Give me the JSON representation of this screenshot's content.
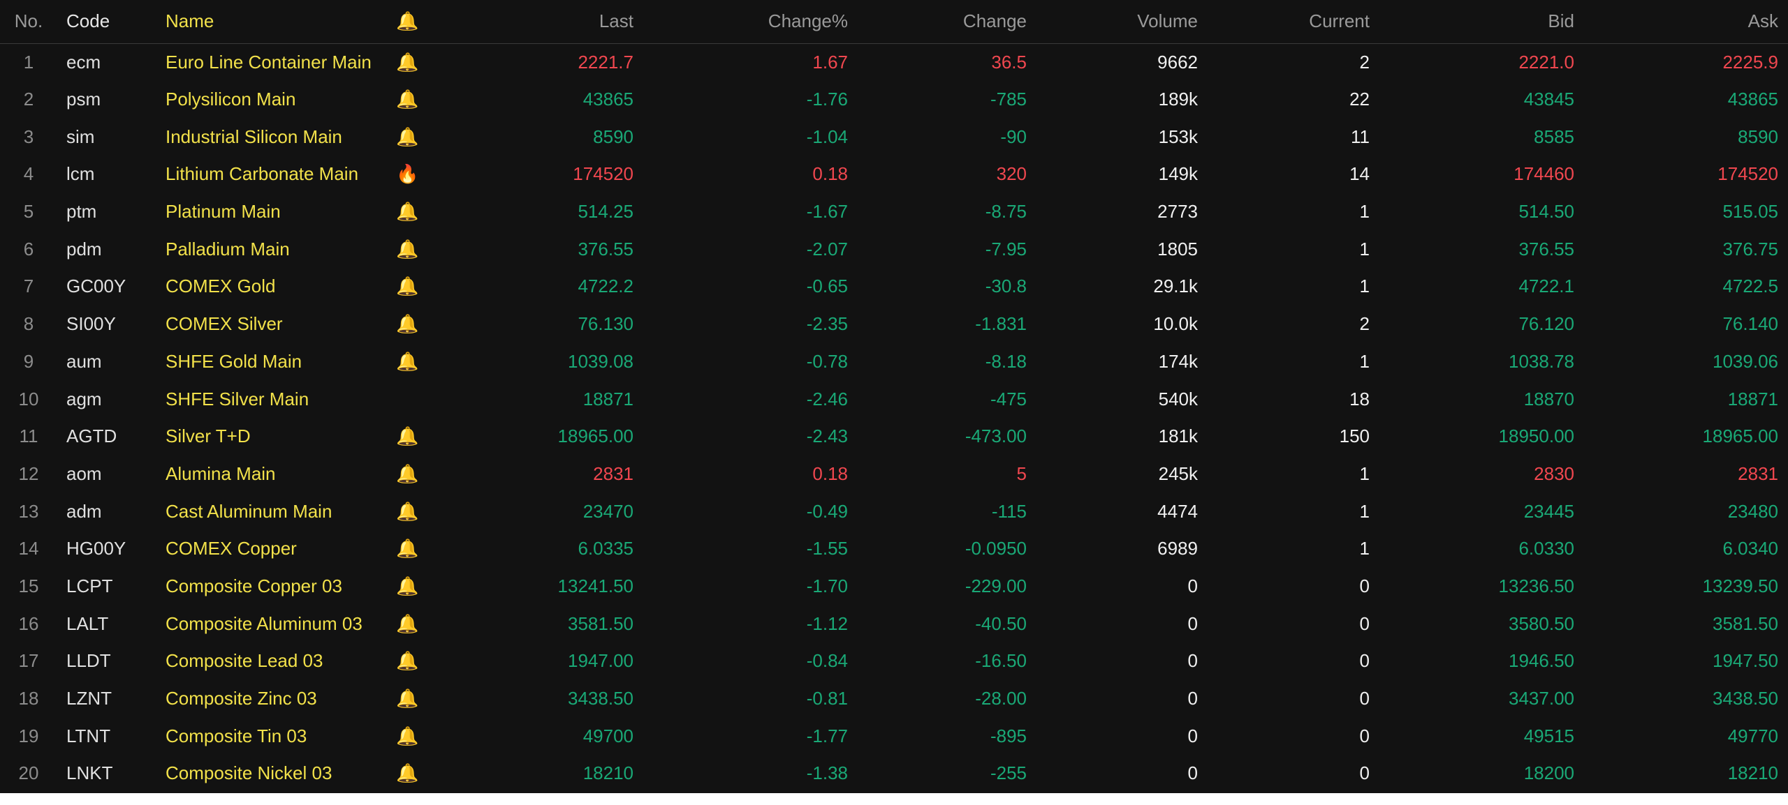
{
  "colors": {
    "background": "#121212",
    "header_text": "#9a9a9a",
    "name_yellow": "#f2e14a",
    "up_red": "#f0474f",
    "down_green": "#1aa876",
    "neutral": "#f0f0f0"
  },
  "header": {
    "no": "No.",
    "code": "Code",
    "name": "Name",
    "alert": "🔔",
    "last": "Last",
    "change_pct": "Change%",
    "change": "Change",
    "volume": "Volume",
    "current": "Current",
    "bid": "Bid",
    "ask": "Ask"
  },
  "rows": [
    {
      "no": "1",
      "code": "ecm",
      "name": "Euro Line Container Main",
      "icon": "🔔",
      "icon_name": "bell-icon",
      "last": "2221.7",
      "change_pct": "1.67",
      "change": "36.5",
      "volume": "9662",
      "current": "2",
      "bid": "2221.0",
      "ask": "2225.9",
      "trend": "up"
    },
    {
      "no": "2",
      "code": "psm",
      "name": "Polysilicon Main",
      "icon": "🔔",
      "icon_name": "bell-icon",
      "last": "43865",
      "change_pct": "-1.76",
      "change": "-785",
      "volume": "189k",
      "current": "22",
      "bid": "43845",
      "ask": "43865",
      "trend": "down"
    },
    {
      "no": "3",
      "code": "sim",
      "name": "Industrial Silicon Main",
      "icon": "🔔",
      "icon_name": "bell-icon",
      "last": "8590",
      "change_pct": "-1.04",
      "change": "-90",
      "volume": "153k",
      "current": "11",
      "bid": "8585",
      "ask": "8590",
      "trend": "down"
    },
    {
      "no": "4",
      "code": "lcm",
      "name": "Lithium Carbonate Main",
      "icon": "🔥",
      "icon_name": "fire-icon",
      "last": "174520",
      "change_pct": "0.18",
      "change": "320",
      "volume": "149k",
      "current": "14",
      "bid": "174460",
      "ask": "174520",
      "trend": "up"
    },
    {
      "no": "5",
      "code": "ptm",
      "name": "Platinum Main",
      "icon": "🔔",
      "icon_name": "bell-icon",
      "last": "514.25",
      "change_pct": "-1.67",
      "change": "-8.75",
      "volume": "2773",
      "current": "1",
      "bid": "514.50",
      "ask": "515.05",
      "trend": "down"
    },
    {
      "no": "6",
      "code": "pdm",
      "name": "Palladium Main",
      "icon": "🔔",
      "icon_name": "bell-icon",
      "last": "376.55",
      "change_pct": "-2.07",
      "change": "-7.95",
      "volume": "1805",
      "current": "1",
      "bid": "376.55",
      "ask": "376.75",
      "trend": "down"
    },
    {
      "no": "7",
      "code": "GC00Y",
      "name": "COMEX Gold",
      "icon": "🔔",
      "icon_name": "bell-icon",
      "last": "4722.2",
      "change_pct": "-0.65",
      "change": "-30.8",
      "volume": "29.1k",
      "current": "1",
      "bid": "4722.1",
      "ask": "4722.5",
      "trend": "down"
    },
    {
      "no": "8",
      "code": "SI00Y",
      "name": "COMEX Silver",
      "icon": "🔔",
      "icon_name": "bell-icon",
      "last": "76.130",
      "change_pct": "-2.35",
      "change": "-1.831",
      "volume": "10.0k",
      "current": "2",
      "bid": "76.120",
      "ask": "76.140",
      "trend": "down"
    },
    {
      "no": "9",
      "code": "aum",
      "name": "SHFE Gold Main",
      "icon": "🔔",
      "icon_name": "bell-icon",
      "last": "1039.08",
      "change_pct": "-0.78",
      "change": "-8.18",
      "volume": "174k",
      "current": "1",
      "bid": "1038.78",
      "ask": "1039.06",
      "trend": "down"
    },
    {
      "no": "10",
      "code": "agm",
      "name": "SHFE Silver Main",
      "icon": "",
      "icon_name": "",
      "last": "18871",
      "change_pct": "-2.46",
      "change": "-475",
      "volume": "540k",
      "current": "18",
      "bid": "18870",
      "ask": "18871",
      "trend": "down"
    },
    {
      "no": "11",
      "code": "AGTD",
      "name": "Silver T+D",
      "icon": "🔔",
      "icon_name": "bell-icon",
      "last": "18965.00",
      "change_pct": "-2.43",
      "change": "-473.00",
      "volume": "181k",
      "current": "150",
      "bid": "18950.00",
      "ask": "18965.00",
      "trend": "down"
    },
    {
      "no": "12",
      "code": "aom",
      "name": "Alumina Main",
      "icon": "🔔",
      "icon_name": "bell-icon",
      "last": "2831",
      "change_pct": "0.18",
      "change": "5",
      "volume": "245k",
      "current": "1",
      "bid": "2830",
      "ask": "2831",
      "trend": "up"
    },
    {
      "no": "13",
      "code": "adm",
      "name": "Cast Aluminum Main",
      "icon": "🔔",
      "icon_name": "bell-icon",
      "last": "23470",
      "change_pct": "-0.49",
      "change": "-115",
      "volume": "4474",
      "current": "1",
      "bid": "23445",
      "ask": "23480",
      "trend": "down"
    },
    {
      "no": "14",
      "code": "HG00Y",
      "name": "COMEX Copper",
      "icon": "🔔",
      "icon_name": "bell-icon",
      "last": "6.0335",
      "change_pct": "-1.55",
      "change": "-0.0950",
      "volume": "6989",
      "current": "1",
      "bid": "6.0330",
      "ask": "6.0340",
      "trend": "down"
    },
    {
      "no": "15",
      "code": "LCPT",
      "name": "Composite Copper 03",
      "icon": "🔔",
      "icon_name": "bell-icon",
      "last": "13241.50",
      "change_pct": "-1.70",
      "change": "-229.00",
      "volume": "0",
      "current": "0",
      "bid": "13236.50",
      "ask": "13239.50",
      "trend": "down"
    },
    {
      "no": "16",
      "code": "LALT",
      "name": "Composite Aluminum 03",
      "icon": "🔔",
      "icon_name": "bell-icon",
      "last": "3581.50",
      "change_pct": "-1.12",
      "change": "-40.50",
      "volume": "0",
      "current": "0",
      "bid": "3580.50",
      "ask": "3581.50",
      "trend": "down"
    },
    {
      "no": "17",
      "code": "LLDT",
      "name": "Composite Lead 03",
      "icon": "🔔",
      "icon_name": "bell-icon",
      "last": "1947.00",
      "change_pct": "-0.84",
      "change": "-16.50",
      "volume": "0",
      "current": "0",
      "bid": "1946.50",
      "ask": "1947.50",
      "trend": "down"
    },
    {
      "no": "18",
      "code": "LZNT",
      "name": "Composite Zinc 03",
      "icon": "🔔",
      "icon_name": "bell-icon",
      "last": "3438.50",
      "change_pct": "-0.81",
      "change": "-28.00",
      "volume": "0",
      "current": "0",
      "bid": "3437.00",
      "ask": "3438.50",
      "trend": "down"
    },
    {
      "no": "19",
      "code": "LTNT",
      "name": "Composite Tin 03",
      "icon": "🔔",
      "icon_name": "bell-icon",
      "last": "49700",
      "change_pct": "-1.77",
      "change": "-895",
      "volume": "0",
      "current": "0",
      "bid": "49515",
      "ask": "49770",
      "trend": "down"
    },
    {
      "no": "20",
      "code": "LNKT",
      "name": "Composite Nickel 03",
      "icon": "🔔",
      "icon_name": "bell-icon",
      "last": "18210",
      "change_pct": "-1.38",
      "change": "-255",
      "volume": "0",
      "current": "0",
      "bid": "18200",
      "ask": "18210",
      "trend": "down"
    }
  ]
}
